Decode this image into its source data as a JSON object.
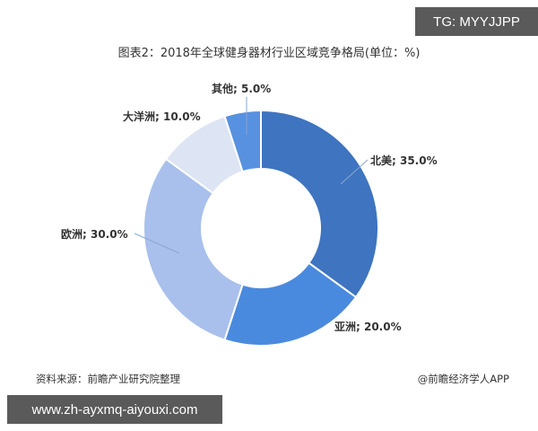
{
  "badges": {
    "tg": "TG: MYYJJPP",
    "url": "www.zh-ayxmq-aiyouxi.com"
  },
  "chart_data": {
    "type": "pie",
    "variant": "donut",
    "title": "图表2：2018年全球健身器材行业区域竞争格局(单位：%)",
    "unit": "%",
    "categories": [
      "北美",
      "亚洲",
      "欧洲",
      "大洋洲",
      "其他"
    ],
    "values": [
      35.0,
      20.0,
      30.0,
      10.0,
      5.0
    ],
    "labels": [
      "北美; 35.0%",
      "亚洲; 20.0%",
      "欧洲; 30.0%",
      "大洋洲; 10.0%",
      "其他; 5.0%"
    ],
    "colors": [
      "#3e74c0",
      "#4a8ade",
      "#a9c0ec",
      "#dde4f3",
      "#5791e0"
    ],
    "start_angle": "12 o'clock, clockwise",
    "legend": "none (data labels with leader lines)"
  },
  "footer": {
    "source": "资料来源：前瞻产业研究院整理",
    "credit": "@前瞻经济学人APP"
  }
}
